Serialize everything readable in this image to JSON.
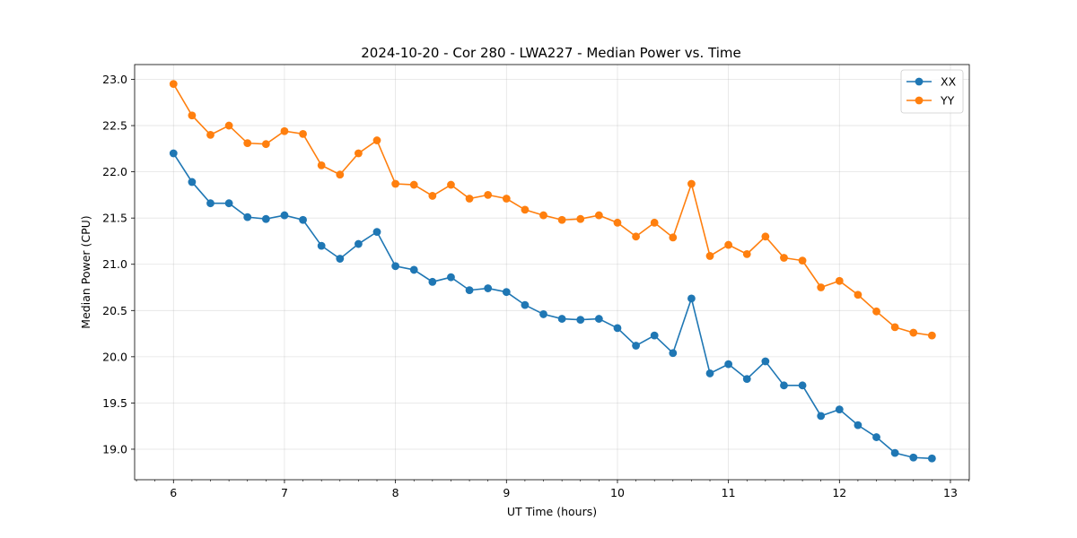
{
  "chart_data": {
    "type": "line",
    "title": "2024-10-20 - Cor 280 - LWA227 - Median Power vs. Time",
    "xlabel": "UT Time (hours)",
    "ylabel": "Median Power (CPU)",
    "xlim": [
      5.65,
      13.17
    ],
    "ylim": [
      18.67,
      23.16
    ],
    "xticks": [
      6,
      7,
      8,
      9,
      10,
      11,
      12,
      13
    ],
    "yticks": [
      19.0,
      19.5,
      20.0,
      20.5,
      21.0,
      21.5,
      22.0,
      22.5,
      23.0
    ],
    "ytick_labels": [
      "19.0",
      "19.5",
      "20.0",
      "20.5",
      "21.0",
      "21.5",
      "22.0",
      "22.5",
      "23.0"
    ],
    "grid": true,
    "legend_position": "top-right",
    "x": [
      6.0,
      6.1667,
      6.3333,
      6.5,
      6.6667,
      6.8333,
      7.0,
      7.1667,
      7.3333,
      7.5,
      7.6667,
      7.8333,
      8.0,
      8.1667,
      8.3333,
      8.5,
      8.6667,
      8.8333,
      9.0,
      9.1667,
      9.3333,
      9.5,
      9.6667,
      9.8333,
      10.0,
      10.1667,
      10.3333,
      10.5,
      10.6667,
      10.8333,
      11.0,
      11.1667,
      11.3333,
      11.5,
      11.6667,
      11.8333,
      12.0,
      12.1667,
      12.3333,
      12.5,
      12.6667,
      12.8333
    ],
    "series": [
      {
        "name": "XX",
        "color": "#1f77b4",
        "values": [
          22.2,
          21.89,
          21.66,
          21.66,
          21.51,
          21.49,
          21.53,
          21.48,
          21.2,
          21.06,
          21.22,
          21.35,
          20.98,
          20.94,
          20.81,
          20.86,
          20.72,
          20.74,
          20.7,
          20.56,
          20.46,
          20.41,
          20.4,
          20.41,
          20.31,
          20.12,
          20.23,
          20.04,
          20.63,
          19.82,
          19.92,
          19.76,
          19.95,
          19.69,
          19.69,
          19.36,
          19.43,
          19.26,
          19.13,
          18.96,
          18.91,
          18.9
        ]
      },
      {
        "name": "YY",
        "color": "#ff7f0e",
        "values": [
          22.95,
          22.61,
          22.4,
          22.5,
          22.31,
          22.3,
          22.44,
          22.41,
          22.07,
          21.97,
          22.2,
          22.34,
          21.87,
          21.86,
          21.74,
          21.86,
          21.71,
          21.75,
          21.71,
          21.59,
          21.53,
          21.48,
          21.49,
          21.53,
          21.45,
          21.3,
          21.45,
          21.29,
          21.87,
          21.09,
          21.21,
          21.11,
          21.3,
          21.07,
          21.04,
          20.75,
          20.82,
          20.67,
          20.49,
          20.32,
          20.26,
          20.23
        ]
      }
    ]
  }
}
